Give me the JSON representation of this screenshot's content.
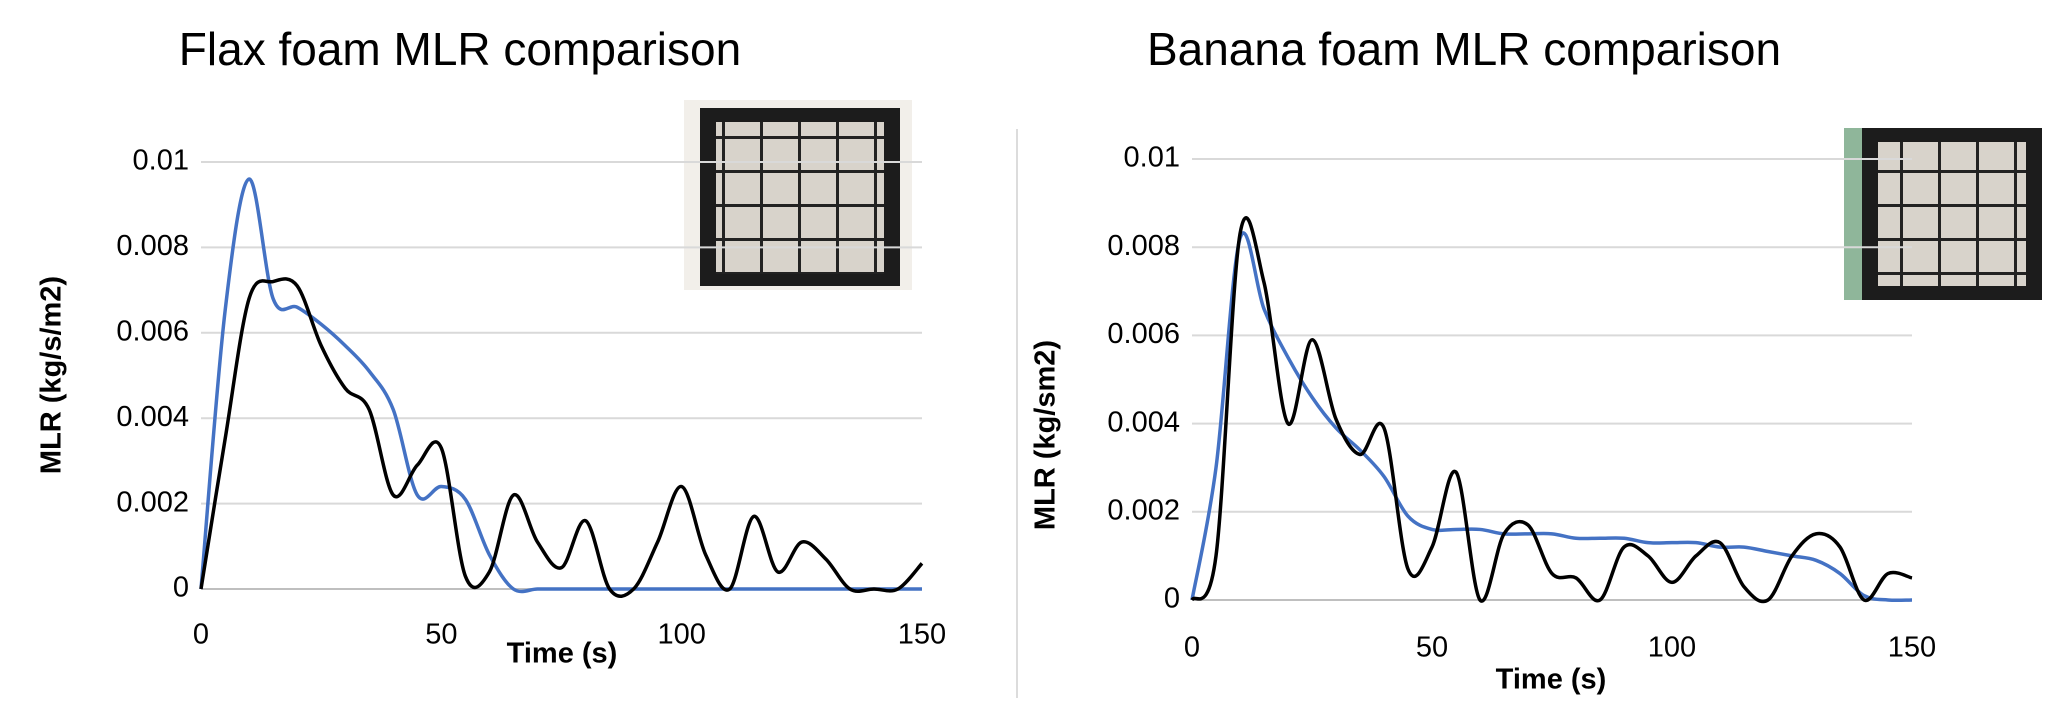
{
  "chart_data": [
    {
      "type": "line",
      "title": "Flax foam MLR comparison",
      "x_label": "Time (s)",
      "y_label": "MLR (kg/s/m2)",
      "x": [
        0,
        5,
        10,
        15,
        20,
        25,
        30,
        35,
        40,
        45,
        50,
        55,
        60,
        65,
        70,
        75,
        80,
        85,
        90,
        95,
        100,
        105,
        110,
        115,
        120,
        125,
        130,
        135,
        140,
        145,
        150
      ],
      "series": [
        {
          "color": "#4472c4",
          "values": [
            0,
            0.0065,
            0.0096,
            0.0068,
            0.0066,
            0.0062,
            0.0057,
            0.0051,
            0.0042,
            0.0022,
            0.0024,
            0.0021,
            0.0008,
            0,
            0,
            0,
            0,
            0,
            0,
            0,
            0,
            0,
            0,
            0,
            0,
            0,
            0,
            0,
            0,
            0,
            0
          ]
        },
        {
          "color": "#000000",
          "values": [
            0,
            0.0035,
            0.0068,
            0.0072,
            0.0071,
            0.0057,
            0.0047,
            0.0042,
            0.0022,
            0.0029,
            0.0033,
            0.0003,
            0.0004,
            0.0022,
            0.0011,
            0.0005,
            0.0016,
            0,
            0,
            0.0011,
            0.0024,
            0.0008,
            0,
            0.0017,
            0.0004,
            0.0011,
            0.0007,
            0,
            0,
            0,
            0.0006
          ]
        }
      ],
      "xlim": [
        0,
        150
      ],
      "xticks": [
        0,
        50,
        100,
        150
      ],
      "ylim": [
        0,
        0.01
      ],
      "yticks": [
        0,
        0.002,
        0.004,
        0.006,
        0.008,
        0.01
      ],
      "grid": true
    },
    {
      "type": "line",
      "title": "Banana foam MLR comparison",
      "x_label": "Time (s)",
      "y_label": "MLR (kg/sm2)",
      "x": [
        0,
        5,
        10,
        15,
        20,
        25,
        30,
        35,
        40,
        45,
        50,
        55,
        60,
        65,
        70,
        75,
        80,
        85,
        90,
        95,
        100,
        105,
        110,
        115,
        120,
        125,
        130,
        135,
        140,
        145,
        150
      ],
      "series": [
        {
          "color": "#4472c4",
          "values": [
            0,
            0.003,
            0.0082,
            0.0066,
            0.0055,
            0.0046,
            0.0039,
            0.0034,
            0.0028,
            0.0019,
            0.0016,
            0.0016,
            0.0016,
            0.0015,
            0.0015,
            0.0015,
            0.0014,
            0.0014,
            0.0014,
            0.0013,
            0.0013,
            0.0013,
            0.0012,
            0.0012,
            0.0011,
            0.001,
            0.0009,
            0.0006,
            0.0001,
            0,
            0
          ]
        },
        {
          "color": "#000000",
          "values": [
            0,
            0.001,
            0.0083,
            0.0072,
            0.004,
            0.0059,
            0.0041,
            0.0033,
            0.0039,
            0.0007,
            0.0012,
            0.0029,
            0,
            0.0015,
            0.0017,
            0.0006,
            0.0005,
            0,
            0.0012,
            0.001,
            0.0004,
            0.001,
            0.0013,
            0.0003,
            0,
            0.001,
            0.0015,
            0.0012,
            0,
            0.0006,
            0.0005
          ]
        }
      ],
      "xlim": [
        0,
        150
      ],
      "xticks": [
        0,
        50,
        100,
        150
      ],
      "ylim": [
        0,
        0.01
      ],
      "yticks": [
        0,
        0.002,
        0.004,
        0.006,
        0.008,
        0.01
      ],
      "grid": true
    }
  ]
}
